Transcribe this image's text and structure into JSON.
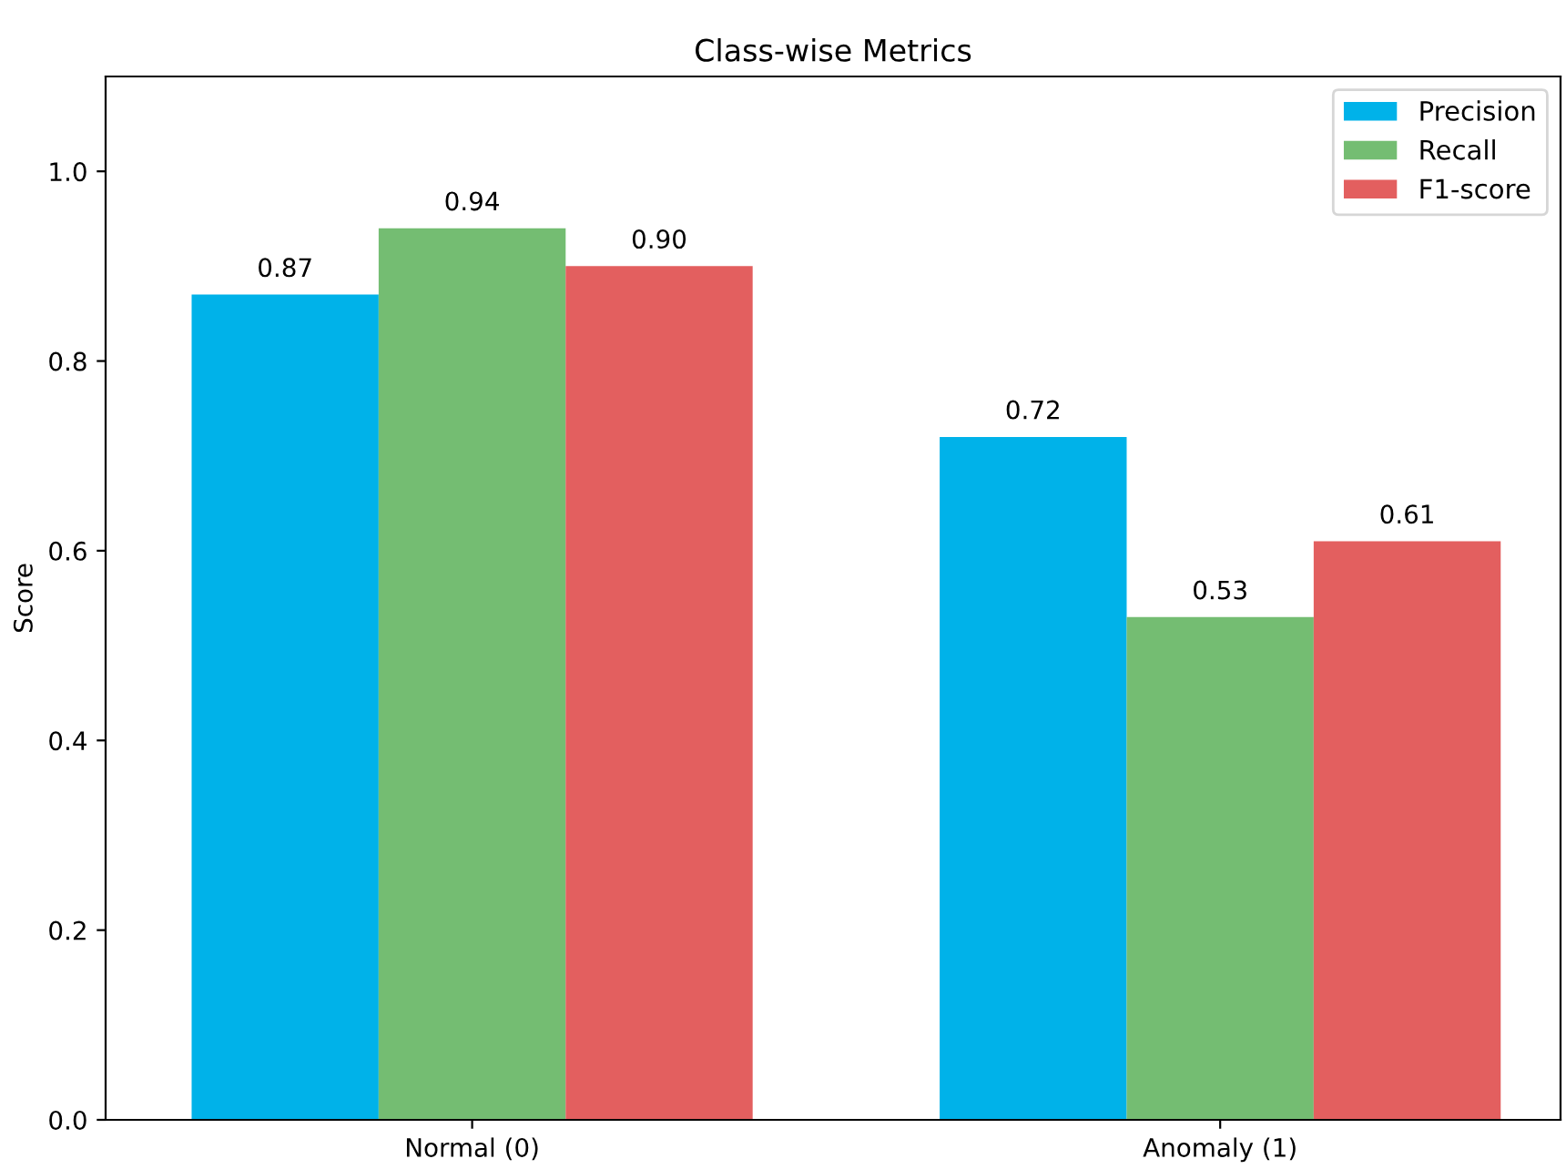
{
  "chart_data": {
    "type": "bar",
    "title": "Class-wise Metrics",
    "ylabel": "Score",
    "categories": [
      "Normal (0)",
      "Anomaly (1)"
    ],
    "series": [
      {
        "name": "Precision",
        "color": "#00b2e9",
        "values": [
          0.87,
          0.72
        ],
        "value_labels": [
          "0.87",
          "0.72"
        ]
      },
      {
        "name": "Recall",
        "color": "#74bd72",
        "values": [
          0.94,
          0.53
        ],
        "value_labels": [
          "0.94",
          "0.53"
        ]
      },
      {
        "name": "F1-score",
        "color": "#e35f5f",
        "values": [
          0.9,
          0.61
        ],
        "value_labels": [
          "0.90",
          "0.61"
        ]
      }
    ],
    "ylim": [
      0,
      1.1
    ],
    "yticks": [
      {
        "value": 0,
        "label": "0.0"
      },
      {
        "value": 0.2,
        "label": "0.2"
      },
      {
        "value": 0.4,
        "label": "0.4"
      },
      {
        "value": 0.6,
        "label": "0.6"
      },
      {
        "value": 0.8,
        "label": "0.8"
      },
      {
        "value": 1.0,
        "label": "1.0"
      }
    ],
    "legend": "top right",
    "grid": false
  }
}
